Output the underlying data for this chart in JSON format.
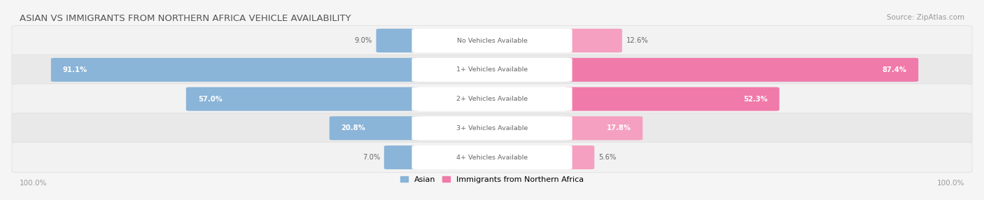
{
  "title": "ASIAN VS IMMIGRANTS FROM NORTHERN AFRICA VEHICLE AVAILABILITY",
  "source": "Source: ZipAtlas.com",
  "categories": [
    "No Vehicles Available",
    "1+ Vehicles Available",
    "2+ Vehicles Available",
    "3+ Vehicles Available",
    "4+ Vehicles Available"
  ],
  "asian_values": [
    9.0,
    91.1,
    57.0,
    20.8,
    7.0
  ],
  "immigrant_values": [
    12.6,
    87.4,
    52.3,
    17.8,
    5.6
  ],
  "asian_color": "#8ab4d8",
  "immigrant_color": "#f07aaa",
  "immigrant_color_light": "#f5a0c0",
  "row_bg_odd": "#f0f0f0",
  "row_bg_even": "#e8e8e8",
  "max_value": 100.0,
  "figsize": [
    14.06,
    2.86
  ],
  "dpi": 100,
  "label_asian": "Asian",
  "label_immigrant": "Immigrants from Northern Africa",
  "inside_label_threshold": 15.0
}
